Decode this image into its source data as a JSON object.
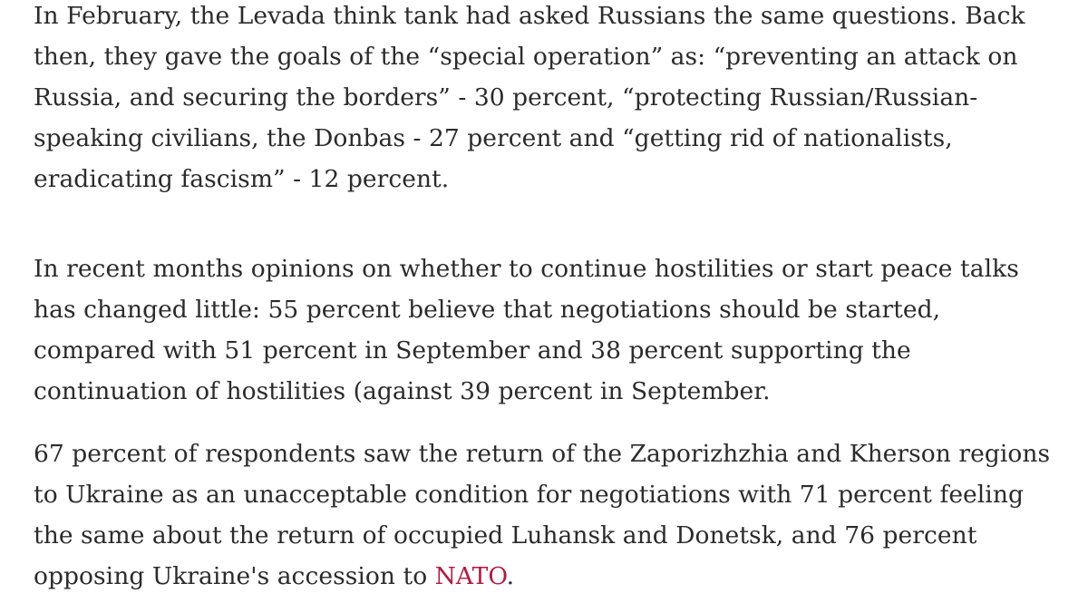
{
  "article": {
    "paragraph1": "In February, the Levada think tank had asked Russians the same questions. Back then, they gave the goals of the “special operation” as: “preventing an attack on Russia, and securing the borders” - 30 percent, “protecting Russian/Russian-speaking civilians, the Donbas - 27 percent and “getting rid of nationalists, eradicating fascism” - 12 percent.",
    "paragraph2": "In recent months opinions on whether to continue hostilities or start peace talks has changed little: 55 percent believe that negotiations should be started, compared with 51 percent in September and 38 percent supporting the continuation of hostilities (against 39 percent in September.",
    "paragraph3_text": "67 percent of respondents saw the return of the Zaporizhzhia and Kherson regions to Ukraine as an unacceptable condition for negotiations with 71 percent feeling the same about the return of occupied Luhansk and Donetsk, and 76 percent opposing Ukraine's accession to ",
    "paragraph3_link": "NATO",
    "paragraph3_end": "."
  },
  "colors": {
    "text": "#2b2b2b",
    "link": "#b5193f",
    "background": "#ffffff"
  }
}
